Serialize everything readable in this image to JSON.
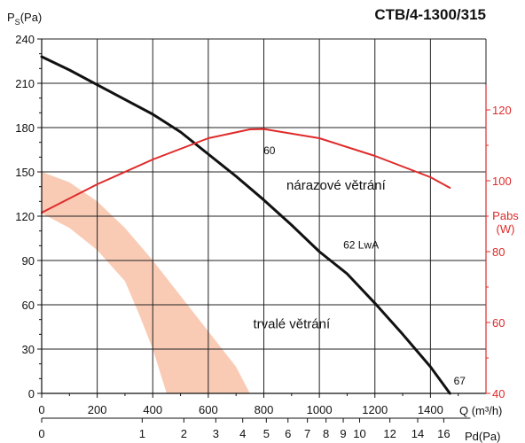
{
  "chart_data": {
    "type": "line",
    "title": "CTB/4-1300/315",
    "ylabel": {
      "main": "P",
      "sub": "S",
      "unit": "(Pa)"
    },
    "xlabel": "Q (m³/h)",
    "x2label": "Pd(Pa)",
    "y2label": {
      "line1": "Pabs",
      "line2": "(W)"
    },
    "xlim": [
      0,
      1600
    ],
    "ylim": [
      0,
      240
    ],
    "y2lim": [
      40,
      140
    ],
    "grid": true,
    "x_ticks": [
      0,
      200,
      400,
      600,
      800,
      1000,
      1200,
      1400
    ],
    "x_tick_labels": [
      "0",
      "200",
      "400",
      "600",
      "800",
      "1000",
      "1200",
      "1400"
    ],
    "y_ticks": [
      0,
      30,
      60,
      90,
      120,
      150,
      180,
      210,
      240
    ],
    "y_tick_labels": [
      "0",
      "30",
      "60",
      "90",
      "120",
      "150",
      "180",
      "210",
      "240"
    ],
    "y2_ticks": [
      40,
      60,
      80,
      100,
      120
    ],
    "y2_tick_labels": [
      "40",
      "60",
      "80",
      "100",
      "120"
    ],
    "pd_ticks": [
      {
        "q": 0,
        "label": "0"
      },
      {
        "q": 362,
        "label": "1"
      },
      {
        "q": 512,
        "label": "2"
      },
      {
        "q": 627,
        "label": "3"
      },
      {
        "q": 724,
        "label": "4"
      },
      {
        "q": 809,
        "label": "5"
      },
      {
        "q": 887,
        "label": "6"
      },
      {
        "q": 957,
        "label": "7"
      },
      {
        "q": 1024,
        "label": "8"
      },
      {
        "q": 1086,
        "label": "9"
      },
      {
        "q": 1145,
        "label": "10"
      },
      {
        "q": 1254,
        "label": "12"
      },
      {
        "q": 1354,
        "label": "14"
      },
      {
        "q": 1448,
        "label": "16"
      }
    ],
    "series": [
      {
        "axis": "left",
        "color": "#111111",
        "x": [
          0,
          100,
          200,
          300,
          400,
          500,
          600,
          700,
          800,
          900,
          1000,
          1100,
          1200,
          1300,
          1400,
          1470
        ],
        "y": [
          228,
          219,
          209,
          199,
          189,
          177,
          162,
          147,
          131,
          114,
          96,
          81,
          61,
          40,
          18,
          0
        ]
      },
      {
        "axis": "right",
        "color": "#e02a2a",
        "x": [
          0,
          200,
          400,
          600,
          750,
          800,
          1000,
          1200,
          1400,
          1470
        ],
        "y": [
          91,
          99,
          106,
          112,
          114.5,
          114.6,
          112,
          107,
          101,
          98
        ]
      }
    ],
    "band": {
      "color": "#f9cbb5",
      "outer": [
        [
          0,
          150
        ],
        [
          100,
          143
        ],
        [
          200,
          130
        ],
        [
          300,
          112
        ],
        [
          400,
          90
        ],
        [
          500,
          66
        ],
        [
          600,
          42
        ],
        [
          700,
          18
        ],
        [
          750,
          0
        ]
      ],
      "inner": [
        [
          0,
          122
        ],
        [
          100,
          112
        ],
        [
          200,
          97
        ],
        [
          300,
          76
        ],
        [
          350,
          54
        ],
        [
          400,
          30
        ],
        [
          450,
          0
        ]
      ]
    },
    "annotations": [
      {
        "text": "60",
        "x": 820,
        "y": 162
      },
      {
        "text": "nárazové větrání",
        "x": 1060,
        "y": 138
      },
      {
        "text": "62 LwA",
        "x": 1150,
        "y": 98
      },
      {
        "text": "trvalé větrání",
        "x": 900,
        "y": 44
      },
      {
        "text": "67",
        "x": 1505,
        "y": 6
      }
    ]
  }
}
